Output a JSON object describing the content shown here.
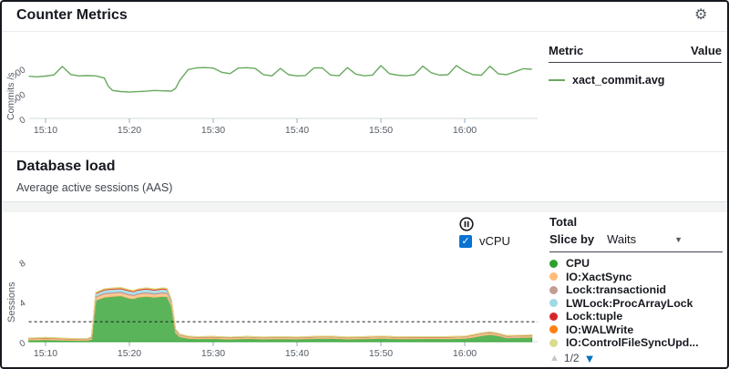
{
  "icons": {
    "gear": "⚙",
    "check": "✓",
    "dropdown_arrow": "▼"
  },
  "counter_metrics": {
    "title": "Counter Metrics",
    "table": {
      "metric_header": "Metric",
      "value_header": "Value"
    }
  },
  "database_load": {
    "title": "Database load",
    "subtitle": "Average active sessions (AAS)",
    "vcpu_label": "vCPU",
    "total_label": "Total",
    "slice_by_label": "Slice by",
    "slice_by_value": "Waits",
    "pagination": {
      "up_icon": "▲",
      "label": "1/2",
      "down_icon": "▼"
    }
  },
  "chart_data": [
    {
      "type": "line",
      "title": "Counter Metrics",
      "ylabel": "Commits /s",
      "xlim_minutes": [
        8,
        68
      ],
      "ylim": [
        0,
        1350
      ],
      "x_ticks": [
        {
          "m": 10,
          "label": "15:10"
        },
        {
          "m": 20,
          "label": "15:20"
        },
        {
          "m": 30,
          "label": "15:30"
        },
        {
          "m": 40,
          "label": "15:40"
        },
        {
          "m": 50,
          "label": "15:50"
        },
        {
          "m": 60,
          "label": "16:00"
        }
      ],
      "y_ticks": [
        {
          "v": 0,
          "label": "0"
        },
        {
          "v": 500,
          "label": "500"
        },
        {
          "v": 1000,
          "label": "1000"
        }
      ],
      "series": [
        {
          "name": "xact_commit.avg",
          "color": "#68a95f",
          "x": [
            8,
            9,
            10,
            11,
            12,
            13,
            14,
            15,
            16,
            17,
            17.5,
            18,
            19,
            20,
            21,
            22,
            23,
            24,
            25,
            25.5,
            26,
            27,
            28,
            29,
            30,
            31,
            32,
            33,
            34,
            35,
            36,
            37,
            38,
            39,
            40,
            41,
            42,
            43,
            44,
            45,
            46,
            47,
            48,
            49,
            50,
            51,
            52,
            53,
            54,
            55,
            56,
            57,
            58,
            59,
            60,
            61,
            62,
            63,
            64,
            65,
            66,
            67,
            68
          ],
          "values": [
            845,
            833,
            848,
            872,
            1042,
            880,
            852,
            858,
            852,
            810,
            640,
            560,
            538,
            528,
            536,
            546,
            560,
            552,
            548,
            600,
            760,
            978,
            1012,
            1018,
            1008,
            925,
            898,
            1008,
            1016,
            1002,
            878,
            852,
            1002,
            875,
            852,
            860,
            1010,
            1012,
            868,
            856,
            1018,
            888,
            854,
            868,
            1058,
            898,
            866,
            854,
            876,
            1048,
            916,
            866,
            876,
            1058,
            946,
            876,
            866,
            1046,
            896,
            876,
            936,
            996,
            986
          ]
        }
      ]
    },
    {
      "type": "stacked_area",
      "title": "Database load",
      "ylabel": "Sessions",
      "xlim_minutes": [
        8,
        68
      ],
      "ylim": [
        0,
        8.64
      ],
      "vcpu_line": {
        "value": 2,
        "label": "vCPU"
      },
      "x_ticks": [
        {
          "m": 10,
          "label": "15:10"
        },
        {
          "m": 20,
          "label": "15:20"
        },
        {
          "m": 30,
          "label": "15:30"
        },
        {
          "m": 40,
          "label": "15:40"
        },
        {
          "m": 50,
          "label": "15:50"
        },
        {
          "m": 60,
          "label": "16:00"
        }
      ],
      "y_ticks": [
        {
          "v": 0,
          "label": "0"
        },
        {
          "v": 4,
          "label": "4"
        },
        {
          "v": 8,
          "label": "8"
        }
      ],
      "x": [
        8,
        10,
        12,
        14,
        15,
        15.5,
        16,
        17,
        18,
        19,
        20,
        20.5,
        21,
        22,
        23,
        24,
        24.5,
        25,
        25.5,
        26,
        27,
        28,
        30,
        32,
        34,
        36,
        38,
        40,
        42,
        44,
        46,
        48,
        50,
        52,
        54,
        56,
        58,
        60,
        61,
        62,
        63,
        64,
        65,
        68
      ],
      "series": [
        {
          "name": "CPU",
          "color": "#2ca02c",
          "values": [
            0.16,
            0.2,
            0.15,
            0.13,
            0.13,
            0.25,
            4.15,
            4.45,
            4.55,
            4.6,
            4.35,
            4.3,
            4.45,
            4.55,
            4.45,
            4.55,
            4.5,
            3.6,
            0.9,
            0.5,
            0.35,
            0.3,
            0.32,
            0.26,
            0.32,
            0.27,
            0.3,
            0.27,
            0.32,
            0.34,
            0.27,
            0.3,
            0.34,
            0.3,
            0.3,
            0.31,
            0.3,
            0.33,
            0.45,
            0.6,
            0.72,
            0.6,
            0.4,
            0.45
          ]
        },
        {
          "name": "IO:XactSync",
          "color": "#ffbb78",
          "values": [
            0.12,
            0.15,
            0.12,
            0.1,
            0.1,
            0.14,
            0.3,
            0.32,
            0.3,
            0.3,
            0.32,
            0.3,
            0.3,
            0.32,
            0.3,
            0.32,
            0.3,
            0.25,
            0.18,
            0.15,
            0.13,
            0.12,
            0.13,
            0.12,
            0.14,
            0.12,
            0.13,
            0.12,
            0.13,
            0.14,
            0.12,
            0.13,
            0.14,
            0.12,
            0.13,
            0.12,
            0.13,
            0.14,
            0.16,
            0.18,
            0.17,
            0.15,
            0.13,
            0.14
          ]
        },
        {
          "name": "Lock:transactionid",
          "color": "#c49c94",
          "values": [
            0.02,
            0.02,
            0.02,
            0.02,
            0.02,
            0.03,
            0.12,
            0.13,
            0.13,
            0.13,
            0.13,
            0.13,
            0.13,
            0.13,
            0.13,
            0.13,
            0.13,
            0.1,
            0.05,
            0.03,
            0.02,
            0.02,
            0.02,
            0.02,
            0.02,
            0.02,
            0.02,
            0.02,
            0.02,
            0.02,
            0.02,
            0.02,
            0.02,
            0.02,
            0.02,
            0.02,
            0.02,
            0.02,
            0.03,
            0.03,
            0.03,
            0.03,
            0.02,
            0.02
          ]
        },
        {
          "name": "LWLock:ProcArrayLock",
          "color": "#9edae5",
          "values": [
            0.02,
            0.02,
            0.02,
            0.02,
            0.02,
            0.04,
            0.26,
            0.28,
            0.28,
            0.28,
            0.28,
            0.28,
            0.28,
            0.28,
            0.28,
            0.28,
            0.28,
            0.2,
            0.08,
            0.04,
            0.02,
            0.02,
            0.02,
            0.02,
            0.02,
            0.02,
            0.02,
            0.02,
            0.02,
            0.02,
            0.02,
            0.02,
            0.02,
            0.02,
            0.02,
            0.02,
            0.02,
            0.02,
            0.02,
            0.03,
            0.03,
            0.02,
            0.02,
            0.02
          ]
        },
        {
          "name": "Lock:tuple",
          "color": "#d62728",
          "values": [
            0.01,
            0.01,
            0.01,
            0.01,
            0.01,
            0.01,
            0.05,
            0.06,
            0.06,
            0.06,
            0.06,
            0.06,
            0.06,
            0.06,
            0.06,
            0.06,
            0.06,
            0.04,
            0.02,
            0.01,
            0.01,
            0.01,
            0.01,
            0.01,
            0.01,
            0.01,
            0.01,
            0.01,
            0.01,
            0.01,
            0.01,
            0.01,
            0.01,
            0.01,
            0.01,
            0.01,
            0.01,
            0.01,
            0.01,
            0.01,
            0.01,
            0.01,
            0.01,
            0.01
          ]
        },
        {
          "name": "IO:WALWrite",
          "color": "#ff7f0e",
          "values": [
            0.02,
            0.02,
            0.02,
            0.02,
            0.02,
            0.02,
            0.04,
            0.04,
            0.04,
            0.04,
            0.04,
            0.04,
            0.04,
            0.04,
            0.04,
            0.04,
            0.04,
            0.04,
            0.02,
            0.02,
            0.02,
            0.02,
            0.02,
            0.02,
            0.02,
            0.02,
            0.02,
            0.02,
            0.02,
            0.02,
            0.02,
            0.02,
            0.02,
            0.02,
            0.02,
            0.02,
            0.02,
            0.02,
            0.02,
            0.02,
            0.02,
            0.02,
            0.02,
            0.02
          ]
        },
        {
          "name": "IO:ControlFileSyncUpd...",
          "color": "#dbdb8d",
          "values": [
            0.01,
            0.01,
            0.01,
            0.01,
            0.01,
            0.01,
            0.03,
            0.03,
            0.03,
            0.03,
            0.03,
            0.03,
            0.03,
            0.03,
            0.03,
            0.03,
            0.03,
            0.01,
            0.01,
            0.01,
            0.01,
            0.01,
            0.01,
            0.01,
            0.01,
            0.01,
            0.01,
            0.01,
            0.01,
            0.01,
            0.01,
            0.01,
            0.01,
            0.01,
            0.01,
            0.01,
            0.01,
            0.01,
            0.01,
            0.01,
            0.01,
            0.01,
            0.01,
            0.01
          ]
        }
      ]
    }
  ]
}
